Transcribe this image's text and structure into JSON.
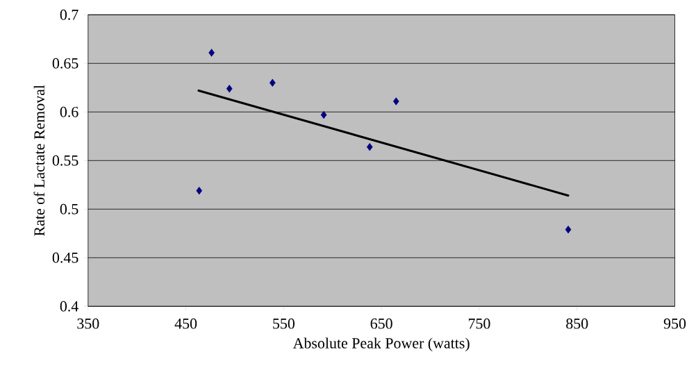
{
  "chart_data": {
    "type": "scatter",
    "xlabel": "Absolute Peak Power (watts)",
    "ylabel": "Rate of Lactate Removal",
    "xlim": [
      350,
      950
    ],
    "xticks": [
      350,
      450,
      550,
      650,
      750,
      850,
      950
    ],
    "ylim": [
      0.4,
      0.7
    ],
    "yticks": [
      0.4,
      0.45,
      0.5,
      0.55,
      0.6,
      0.65,
      0.7
    ],
    "grid": "y",
    "marker": "diamond",
    "series": [
      {
        "color": "#000080",
        "x": [
          463.6,
          476.3,
          494.5,
          538.6,
          591,
          638,
          665,
          841
        ],
        "values": [
          0.519,
          0.661,
          0.624,
          0.63,
          0.597,
          0.564,
          0.611,
          0.479
        ]
      },
      {
        "type": "line",
        "marker": "none",
        "color": "#000000",
        "x": [
          463,
          841
        ],
        "values": [
          0.622,
          0.514
        ]
      }
    ]
  }
}
